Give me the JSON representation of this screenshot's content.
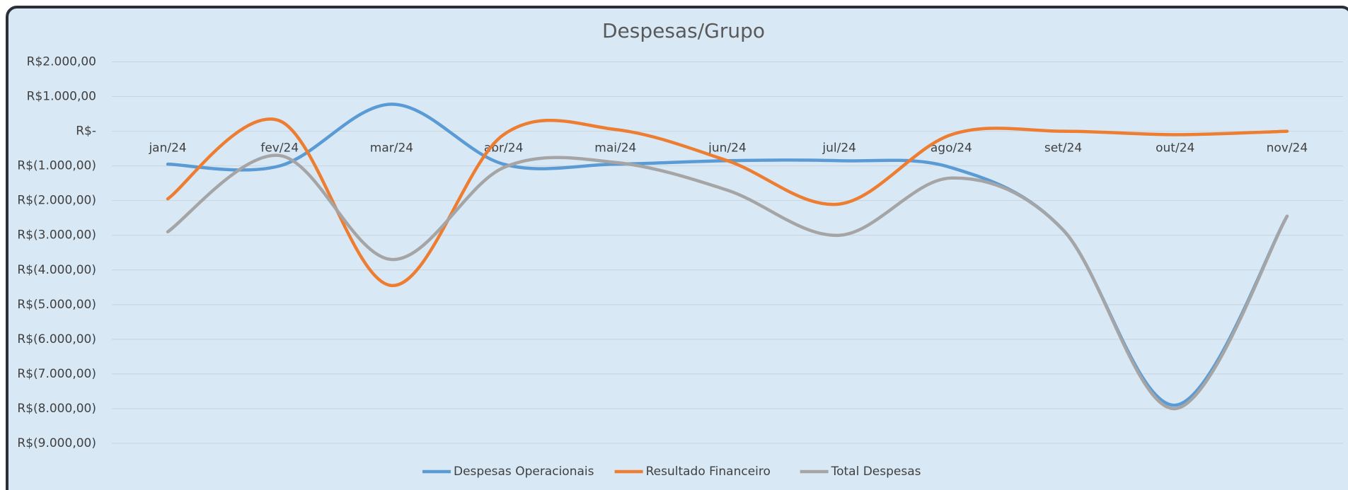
{
  "chart_data": {
    "type": "line",
    "title": "Despesas/Grupo",
    "categories": [
      "jan/24",
      "fev/24",
      "mar/24",
      "abr/24",
      "mai/24",
      "jun/24",
      "jul/24",
      "ago/24",
      "set/24",
      "out/24",
      "nov/24"
    ],
    "series": [
      {
        "name": "Despesas Operacionais",
        "color": "#5b9bd5",
        "values": [
          -950,
          -1000,
          780,
          -950,
          -950,
          -850,
          -850,
          -1050,
          -2850,
          -7900,
          -2450
        ]
      },
      {
        "name": "Resultado Financeiro",
        "color": "#ed7d31",
        "values": [
          -1950,
          300,
          -4450,
          -100,
          50,
          -850,
          -2100,
          -100,
          0,
          -100,
          0
        ]
      },
      {
        "name": "Total Despesas",
        "color": "#a5a5a5",
        "values": [
          -2900,
          -700,
          -3700,
          -1050,
          -900,
          -1700,
          -3000,
          -1350,
          -2850,
          -8000,
          -2450
        ]
      }
    ],
    "ylim": [
      -9000,
      2000
    ],
    "yticks": [
      {
        "value": 2000,
        "label": "R$2.000,00"
      },
      {
        "value": 1000,
        "label": "R$1.000,00"
      },
      {
        "value": 0,
        "label": "R$-"
      },
      {
        "value": -1000,
        "label": "R$(1.000,00)"
      },
      {
        "value": -2000,
        "label": "R$(2.000,00)"
      },
      {
        "value": -3000,
        "label": "R$(3.000,00)"
      },
      {
        "value": -4000,
        "label": "R$(4.000,00)"
      },
      {
        "value": -5000,
        "label": "R$(5.000,00)"
      },
      {
        "value": -6000,
        "label": "R$(6.000,00)"
      },
      {
        "value": -7000,
        "label": "R$(7.000,00)"
      },
      {
        "value": -8000,
        "label": "R$(8.000,00)"
      },
      {
        "value": -9000,
        "label": "R$(9.000,00)"
      }
    ],
    "grid": true,
    "smooth": true,
    "legend": "bottom"
  }
}
